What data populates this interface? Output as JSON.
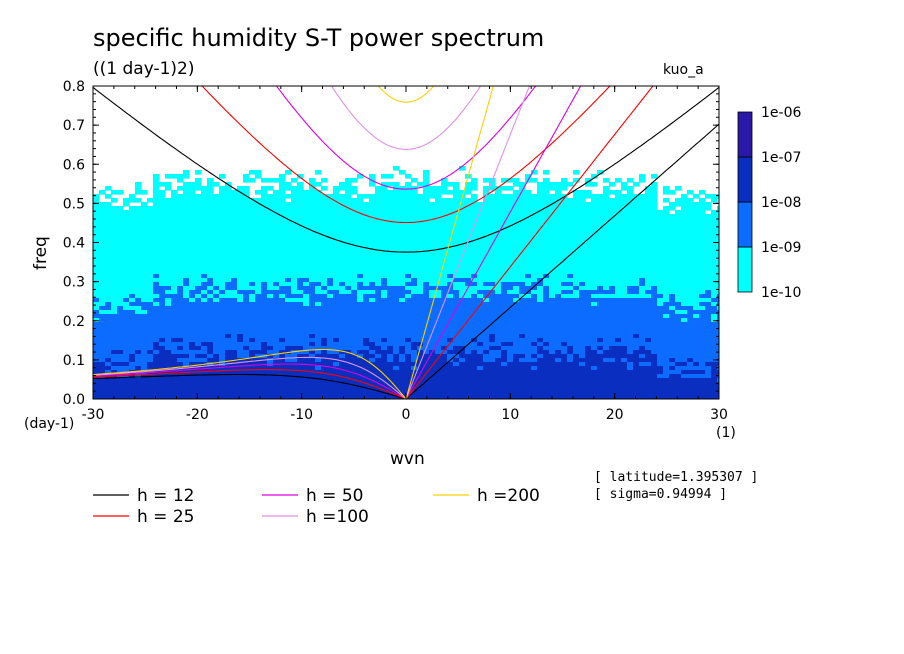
{
  "chart_data": {
    "type": "heatmap",
    "title": "specific humidity S-T power spectrum",
    "subtitle": "((1 day-1)2)",
    "run_label": "kuo_a",
    "xlabel": "wvn",
    "ylabel": "freq",
    "x_unit": "(1)",
    "y_unit": "(day-1)",
    "xlim": [
      -30,
      30
    ],
    "ylim": [
      0,
      0.8
    ],
    "x_ticks": [
      -30,
      -20,
      -10,
      0,
      10,
      20,
      30
    ],
    "x_tick_labels": [
      "-30",
      "-20",
      "-10",
      "0",
      "10",
      "20",
      "30"
    ],
    "y_ticks": [
      0,
      0.1,
      0.2,
      0.3,
      0.4,
      0.5,
      0.6,
      0.7,
      0.8
    ],
    "y_tick_labels": [
      "0.0",
      "0.1",
      "0.2",
      "0.3",
      "0.4",
      "0.5",
      "0.6",
      "0.7",
      "0.8"
    ],
    "colorbar": {
      "levels": [
        "1e-10",
        "1e-09",
        "1e-08",
        "1e-07",
        "1e-06"
      ],
      "colors": [
        "#00ffff",
        "#0c6cff",
        "#0a2fc0",
        "#2a18a8",
        "#5a1cb4"
      ]
    },
    "power_bands": [
      {
        "level": "1e-10 to 1e-09",
        "color": "#00ffff",
        "max_freq_approx": 0.55
      },
      {
        "level": "1e-09 to 1e-08",
        "color": "#0c6cff",
        "max_freq_approx": 0.28
      },
      {
        "level": "1e-08 to 1e-07",
        "color": "#0a2fc0",
        "max_freq_approx": 0.12
      }
    ],
    "dispersion_curves": [
      {
        "name": "h = 12",
        "h": 12,
        "color": "#000000"
      },
      {
        "name": "h = 25",
        "h": 25,
        "color": "#ff0000"
      },
      {
        "name": "h = 50",
        "h": 50,
        "color": "#dd00dd"
      },
      {
        "name": "h =100",
        "h": 100,
        "color": "#e090e8"
      },
      {
        "name": "h =200",
        "h": 200,
        "color": "#ffd000"
      }
    ],
    "annotations": [
      "[ latitude=1.395307 ]",
      "[ sigma=0.94994 ]"
    ]
  },
  "legend": [
    {
      "label": "h = 12",
      "color": "#000000"
    },
    {
      "label": "h = 25",
      "color": "#ff0000"
    },
    {
      "label": "h = 50",
      "color": "#dd00dd"
    },
    {
      "label": "h =100",
      "color": "#e090e8"
    },
    {
      "label": "h =200",
      "color": "#ffd000"
    }
  ],
  "notes": {
    "latitude": "[ latitude=1.395307 ]",
    "sigma": "[ sigma=0.94994 ]"
  }
}
